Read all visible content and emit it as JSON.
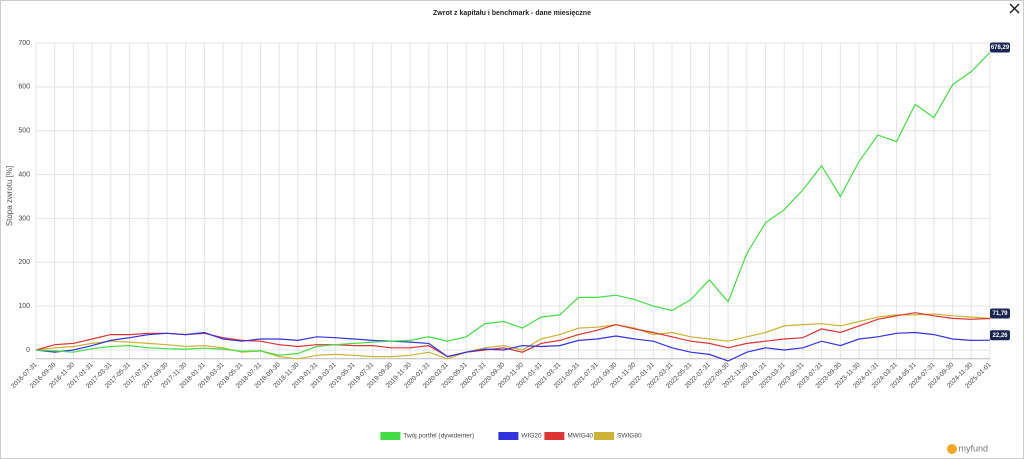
{
  "chart_data": {
    "type": "line",
    "title": "Zwrot z kapitału i benchmark - dane miesięczne",
    "y_label": "Stopa zwrotu [%]",
    "brand": "myfund",
    "categories": [
      "2016-07-31",
      "2016-09-30",
      "2016-11-30",
      "2017-01-31",
      "2017-03-31",
      "2017-05-31",
      "2017-07-31",
      "2017-09-30",
      "2017-11-30",
      "2018-01-31",
      "2018-03-31",
      "2018-05-31",
      "2018-07-31",
      "2018-09-30",
      "2018-11-30",
      "2019-01-31",
      "2019-03-31",
      "2019-05-31",
      "2019-07-31",
      "2019-09-30",
      "2019-11-30",
      "2020-01-31",
      "2020-03-31",
      "2020-05-31",
      "2020-07-31",
      "2020-09-30",
      "2020-11-30",
      "2021-01-31",
      "2021-03-31",
      "2021-05-31",
      "2021-07-31",
      "2021-09-30",
      "2021-11-30",
      "2022-01-31",
      "2022-03-31",
      "2022-05-31",
      "2022-07-31",
      "2022-09-30",
      "2022-11-30",
      "2023-01-31",
      "2023-03-31",
      "2023-05-31",
      "2023-07-31",
      "2023-09-30",
      "2023-11-30",
      "2024-01-31",
      "2024-03-31",
      "2024-05-31",
      "2024-07-31",
      "2024-09-30",
      "2024-11-30",
      "2025-01-01"
    ],
    "series": [
      {
        "name": "Twój portfel (dywidenter)",
        "color": "#44dd44",
        "values": [
          0,
          -2,
          -5,
          3,
          8,
          10,
          5,
          3,
          2,
          4,
          2,
          -3,
          -2,
          -12,
          -8,
          8,
          12,
          15,
          18,
          20,
          22,
          30,
          20,
          30,
          60,
          65,
          50,
          75,
          80,
          120,
          120,
          125,
          115,
          100,
          90,
          115,
          160,
          110,
          220,
          290,
          320,
          365,
          420,
          350,
          430,
          490,
          475,
          560,
          530,
          605,
          635,
          678.29
        ],
        "value_labels": [
          null,
          null,
          null,
          null,
          null,
          null,
          null,
          null,
          null,
          null,
          null,
          null,
          null,
          null,
          null,
          null,
          null,
          null,
          null,
          null,
          null,
          null,
          null,
          null,
          null,
          null,
          null,
          null,
          null,
          null,
          null,
          null,
          null,
          null,
          null,
          null,
          null,
          null,
          null,
          null,
          null,
          null,
          null,
          null,
          null,
          null,
          null,
          null,
          null,
          null,
          null,
          "678,29"
        ]
      },
      {
        "name": "WIG20",
        "color": "#3333dd",
        "values": [
          0,
          -5,
          0,
          10,
          22,
          28,
          35,
          38,
          35,
          40,
          25,
          20,
          25,
          25,
          22,
          30,
          28,
          25,
          22,
          20,
          18,
          15,
          -15,
          -5,
          2,
          0,
          10,
          8,
          10,
          22,
          25,
          32,
          25,
          20,
          5,
          -5,
          -10,
          -25,
          -5,
          5,
          0,
          5,
          20,
          10,
          25,
          30,
          38,
          40,
          35,
          25,
          22,
          22.26
        ],
        "value_labels": [
          null,
          null,
          null,
          null,
          null,
          null,
          null,
          null,
          null,
          null,
          null,
          null,
          null,
          null,
          null,
          null,
          null,
          null,
          null,
          null,
          null,
          null,
          null,
          null,
          null,
          null,
          null,
          null,
          null,
          null,
          null,
          null,
          null,
          null,
          null,
          null,
          null,
          null,
          null,
          null,
          null,
          null,
          null,
          null,
          null,
          null,
          null,
          null,
          null,
          null,
          null,
          "22,26"
        ]
      },
      {
        "name": "MWIG40",
        "color": "#dd3333",
        "values": [
          0,
          12,
          15,
          25,
          35,
          35,
          38,
          38,
          35,
          38,
          28,
          22,
          20,
          12,
          8,
          12,
          12,
          10,
          10,
          5,
          5,
          10,
          -15,
          -5,
          0,
          5,
          -5,
          15,
          22,
          35,
          45,
          58,
          48,
          40,
          30,
          20,
          15,
          5,
          15,
          20,
          25,
          28,
          48,
          40,
          55,
          70,
          78,
          85,
          78,
          72,
          70,
          71.79
        ],
        "value_labels": [
          null,
          null,
          null,
          null,
          null,
          null,
          null,
          null,
          null,
          null,
          null,
          null,
          null,
          null,
          null,
          null,
          null,
          null,
          null,
          null,
          null,
          null,
          null,
          null,
          null,
          null,
          null,
          null,
          null,
          null,
          null,
          null,
          null,
          null,
          null,
          null,
          null,
          null,
          null,
          null,
          null,
          null,
          null,
          null,
          null,
          null,
          null,
          null,
          null,
          null,
          null,
          "71,79"
        ]
      },
      {
        "name": "SWIG80",
        "color": "#ccb333",
        "values": [
          0,
          5,
          8,
          15,
          20,
          18,
          15,
          12,
          8,
          10,
          5,
          -5,
          -2,
          -15,
          -20,
          -12,
          -10,
          -12,
          -15,
          -15,
          -12,
          -5,
          -20,
          -5,
          5,
          10,
          0,
          25,
          35,
          50,
          52,
          58,
          50,
          35,
          40,
          30,
          25,
          20,
          30,
          40,
          55,
          58,
          60,
          55,
          65,
          75,
          80,
          80,
          82,
          78,
          75,
          72
        ]
      }
    ],
    "ylim": [
      -20,
      700
    ],
    "yticks": [
      0,
      100,
      200,
      300,
      400,
      500,
      600,
      700
    ],
    "grid": true,
    "legend": "bottom"
  }
}
